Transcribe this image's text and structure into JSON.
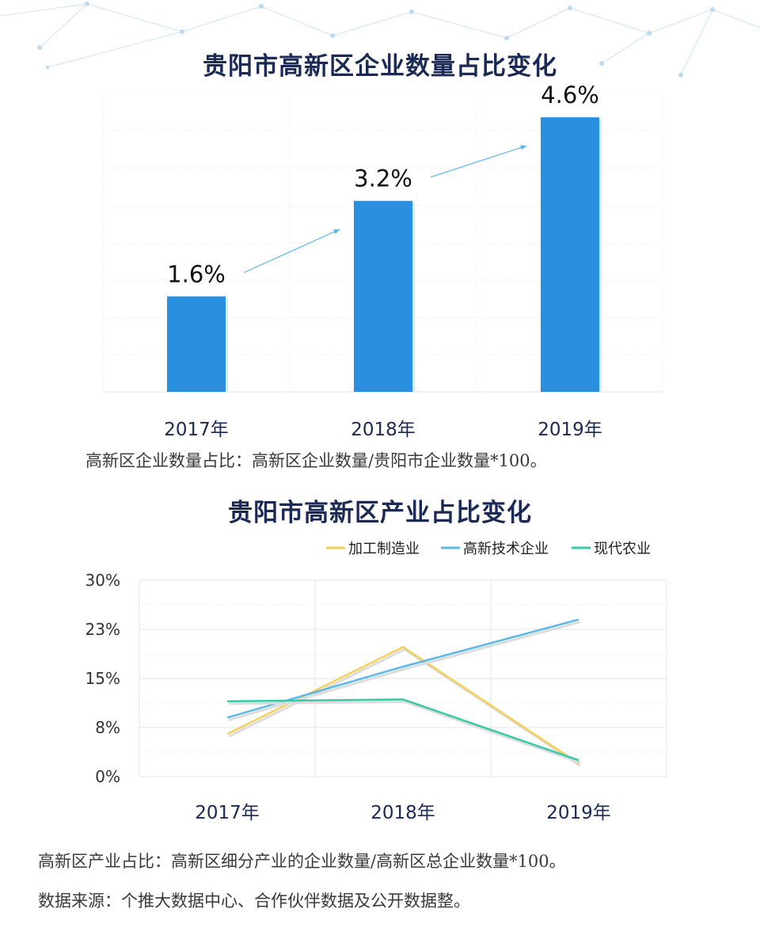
{
  "colors": {
    "title": "#1b2a55",
    "bar": "#2b8fe0",
    "arrow": "#5ab4ea",
    "grid": "#e2e2e2",
    "processing": "#f5cf5a",
    "hightech": "#5bb8e8",
    "agriculture": "#37c9a7"
  },
  "titles": {
    "chart1": "贵阳市高新区企业数量占比变化",
    "chart2": "贵阳市高新区产业占比变化"
  },
  "notes": {
    "chart1": "高新区企业数量占比：高新区企业数量/贵阳市企业数量*100。",
    "chart2": "高新区产业占比：高新区细分产业的企业数量/高新区总企业数量*100。",
    "source": "数据来源：个推大数据中心、合作伙伴数据及公开数据整。"
  },
  "chart_data": [
    {
      "type": "bar",
      "title": "贵阳市高新区企业数量占比变化",
      "categories": [
        "2017年",
        "2018年",
        "2019年"
      ],
      "values": [
        1.6,
        3.2,
        4.6
      ],
      "value_labels": [
        "1.6%",
        "3.2%",
        "4.6%"
      ],
      "ylim": [
        0,
        5
      ],
      "grid": true,
      "annotations": [
        "arrow 2017→2018",
        "arrow 2018→2019"
      ]
    },
    {
      "type": "line",
      "title": "贵阳市高新区产业占比变化",
      "categories": [
        "2017年",
        "2018年",
        "2019年"
      ],
      "yticks": [
        "30%",
        "23%",
        "15%",
        "8%",
        "0%"
      ],
      "ylim": [
        0,
        30
      ],
      "grid": true,
      "legend": "top-right",
      "series": [
        {
          "name": "加工制造业",
          "values": [
            6.5,
            19.8,
            2.0
          ]
        },
        {
          "name": "高新技术企业",
          "values": [
            9.0,
            16.8,
            24.0
          ]
        },
        {
          "name": "现代农业",
          "values": [
            11.5,
            11.8,
            2.5
          ]
        }
      ]
    }
  ]
}
